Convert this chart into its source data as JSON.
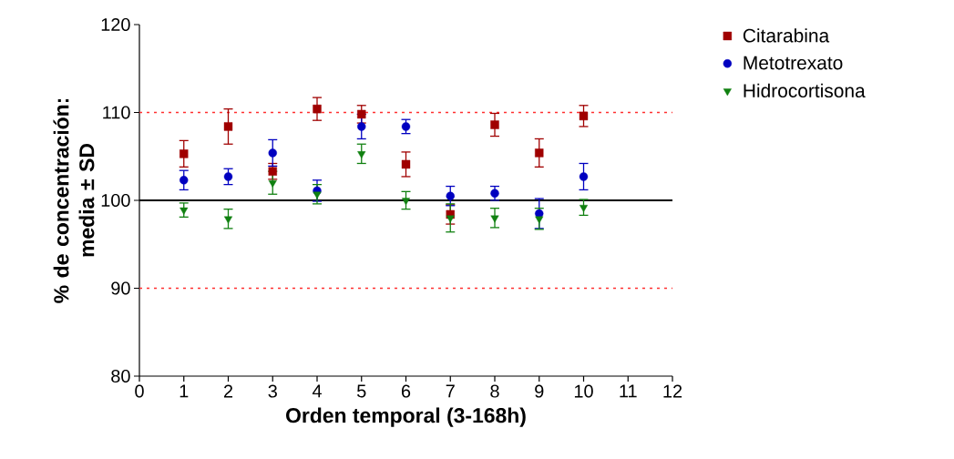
{
  "chart_data": {
    "type": "scatter",
    "xlabel": "Orden temporal (3-168h)",
    "ylabel": "% de concentración: media ± SD",
    "x": [
      1,
      2,
      3,
      4,
      5,
      6,
      7,
      8,
      9,
      10
    ],
    "series": [
      {
        "name": "Citarabina",
        "color": "#a00000",
        "marker": "square",
        "values": [
          105.3,
          108.4,
          103.3,
          110.4,
          109.8,
          104.1,
          98.4,
          108.6,
          105.4,
          109.6
        ],
        "errors": [
          1.5,
          2.0,
          0.9,
          1.3,
          1.0,
          1.4,
          1.1,
          1.3,
          1.6,
          1.2
        ]
      },
      {
        "name": "Metotrexato",
        "color": "#0000c0",
        "marker": "circle",
        "values": [
          102.3,
          102.7,
          105.4,
          101.1,
          108.4,
          108.4,
          100.5,
          100.8,
          98.5,
          102.7
        ],
        "errors": [
          1.1,
          0.9,
          1.5,
          1.2,
          1.4,
          0.8,
          1.1,
          0.8,
          1.7,
          1.5
        ]
      },
      {
        "name": "Hidrocortisona",
        "color": "#108010",
        "marker": "triangle",
        "values": [
          98.9,
          97.9,
          102.0,
          100.7,
          105.3,
          100.0,
          98.0,
          98.0,
          97.9,
          99.2
        ],
        "errors": [
          0.8,
          1.1,
          1.3,
          1.1,
          1.1,
          1.0,
          1.6,
          1.1,
          1.2,
          0.9
        ]
      }
    ],
    "xlim": [
      0,
      12
    ],
    "xticks": [
      0,
      1,
      2,
      3,
      4,
      5,
      6,
      7,
      8,
      9,
      10,
      11,
      12
    ],
    "ylim": [
      80,
      120
    ],
    "yticks": [
      80,
      90,
      100,
      110,
      120
    ],
    "ref_lines": [
      {
        "axis": "y",
        "value": 110,
        "color": "#ff3030",
        "line_style": "dotted"
      },
      {
        "axis": "y",
        "value": 100,
        "color": "#000000",
        "line_style": "solid"
      },
      {
        "axis": "y",
        "value": 90,
        "color": "#ff3030",
        "line_style": "dotted"
      }
    ],
    "grid": false,
    "legend": "top right",
    "line_style": "none"
  }
}
